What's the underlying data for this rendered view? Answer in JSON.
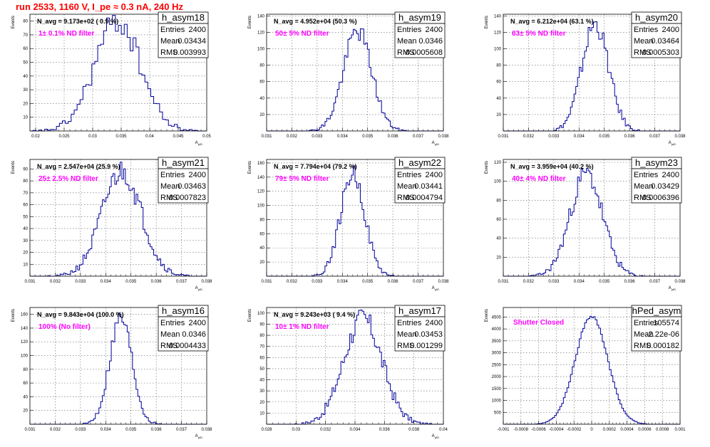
{
  "title": "run 2533,  1160 V, I_pe ≈ 0.3 nA, 240 Hz",
  "chart_data": [
    {
      "type": "histogram",
      "name": "h_asym18",
      "entries": "2400",
      "mean": "0.03434",
      "rms": "0.003993",
      "navg": "N_avg = 9.173e+02 ( 0.9 %)",
      "filter": "1± 0.1% ND filter",
      "xlim": [
        0.019,
        0.05
      ],
      "ylim": [
        0,
        85
      ],
      "xticks": [
        0.02,
        0.025,
        0.03,
        0.035,
        0.04,
        0.045,
        0.05
      ],
      "xtick_labels": [
        "0.02",
        "0.025",
        "0.03",
        "0.035",
        "0.04",
        "0.045",
        "0.05"
      ],
      "yticks": [
        10,
        20,
        30,
        40,
        50,
        60,
        70,
        80
      ],
      "ylabel": "Events",
      "xlabel": "A_{μID}",
      "mu": 0.03434,
      "sigma": 0.003993,
      "peak": 80,
      "bins": 60,
      "seed": 18
    },
    {
      "type": "histogram",
      "name": "h_asym19",
      "entries": "2400",
      "mean": "0.0346",
      "rms": "0.0005608",
      "navg": "N_avg = 4.952e+04 (50.3 %)",
      "filter": "50± 5% ND filter",
      "xlim": [
        0.031,
        0.038
      ],
      "ylim": [
        0,
        142
      ],
      "xticks": [
        0.031,
        0.032,
        0.033,
        0.034,
        0.035,
        0.036,
        0.037,
        0.038
      ],
      "xtick_labels": [
        "0.031",
        "0.032",
        "0.033",
        "0.034",
        "0.035",
        "0.036",
        "0.037",
        "0.038"
      ],
      "yticks": [
        20,
        40,
        60,
        80,
        100,
        120,
        140
      ],
      "ylabel": "Events",
      "xlabel": "A_{μID}",
      "mu": 0.0346,
      "sigma": 0.0005608,
      "peak": 122,
      "bins": 100,
      "seed": 19
    },
    {
      "type": "histogram",
      "name": "h_asym20",
      "entries": "2400",
      "mean": "0.03464",
      "rms": "0.0005303",
      "navg": "N_avg = 6.212e+04 (63.1 %)",
      "filter": "63± 5% ND filter",
      "xlim": [
        0.031,
        0.038
      ],
      "ylim": [
        0,
        142
      ],
      "xticks": [
        0.031,
        0.032,
        0.033,
        0.034,
        0.035,
        0.036,
        0.037,
        0.038
      ],
      "xtick_labels": [
        "0.031",
        "0.032",
        "0.033",
        "0.034",
        "0.035",
        "0.036",
        "0.037",
        "0.038"
      ],
      "yticks": [
        20,
        40,
        60,
        80,
        100,
        120,
        140
      ],
      "ylabel": "Events",
      "xlabel": "A_{μID}",
      "mu": 0.03464,
      "sigma": 0.0005303,
      "peak": 130,
      "bins": 100,
      "seed": 20
    },
    {
      "type": "histogram",
      "name": "h_asym21",
      "entries": "2400",
      "mean": "0.03463",
      "rms": "0.0007823",
      "navg": "N_avg = 2.547e+04 (25.9 %)",
      "filter": "25± 2.5% ND filter",
      "xlim": [
        0.031,
        0.038
      ],
      "ylim": [
        0,
        98
      ],
      "xticks": [
        0.031,
        0.032,
        0.033,
        0.034,
        0.035,
        0.036,
        0.037,
        0.038
      ],
      "xtick_labels": [
        "0.031",
        "0.032",
        "0.033",
        "0.034",
        "0.035",
        "0.036",
        "0.037",
        "0.038"
      ],
      "yticks": [
        10,
        20,
        30,
        40,
        50,
        60,
        70,
        80,
        90
      ],
      "ylabel": "Events",
      "xlabel": "A_{μID}",
      "mu": 0.03463,
      "sigma": 0.0007823,
      "peak": 88,
      "bins": 100,
      "seed": 21
    },
    {
      "type": "histogram",
      "name": "h_asym22",
      "entries": "2400",
      "mean": "0.03441",
      "rms": "0.0004794",
      "navg": "N_avg = 7.794e+04 (79.2 %)",
      "filter": "79± 5% ND filter",
      "xlim": [
        0.031,
        0.038
      ],
      "ylim": [
        0,
        165
      ],
      "xticks": [
        0.031,
        0.032,
        0.033,
        0.034,
        0.035,
        0.036,
        0.037,
        0.038
      ],
      "xtick_labels": [
        "0.031",
        "0.032",
        "0.033",
        "0.034",
        "0.035",
        "0.036",
        "0.037",
        "0.038"
      ],
      "yticks": [
        20,
        40,
        60,
        80,
        100,
        120,
        140,
        160
      ],
      "ylabel": "Events",
      "xlabel": "A_{μID}",
      "mu": 0.03441,
      "sigma": 0.0004794,
      "peak": 145,
      "bins": 100,
      "seed": 22
    },
    {
      "type": "histogram",
      "name": "h_asym23",
      "entries": "2400",
      "mean": "0.03429",
      "rms": "0.0006396",
      "navg": "N_avg = 3.959e+04 (40.2 %)",
      "filter": "40± 4% ND filter",
      "xlim": [
        0.031,
        0.038
      ],
      "ylim": [
        0,
        123
      ],
      "xticks": [
        0.031,
        0.032,
        0.033,
        0.034,
        0.035,
        0.036,
        0.037,
        0.038
      ],
      "xtick_labels": [
        "0.031",
        "0.032",
        "0.033",
        "0.034",
        "0.035",
        "0.036",
        "0.037",
        "0.038"
      ],
      "yticks": [
        20,
        40,
        60,
        80,
        100,
        120
      ],
      "ylabel": "Events",
      "xlabel": "A_{μID}",
      "mu": 0.03429,
      "sigma": 0.0006396,
      "peak": 108,
      "bins": 100,
      "seed": 23
    },
    {
      "type": "histogram",
      "name": "h_asym16",
      "entries": "2400",
      "mean": "0.0346",
      "rms": "0.0004433",
      "navg": "N_avg = 9.843e+04 (100.0 %)",
      "filter": "100% (No filter)",
      "xlim": [
        0.031,
        0.038
      ],
      "ylim": [
        0,
        170
      ],
      "xticks": [
        0.031,
        0.032,
        0.033,
        0.034,
        0.035,
        0.036,
        0.037,
        0.038
      ],
      "xtick_labels": [
        "0.031",
        "0.032",
        "0.033",
        "0.034",
        "0.035",
        "0.036",
        "0.037",
        "0.038"
      ],
      "yticks": [
        20,
        40,
        60,
        80,
        100,
        120,
        140,
        160
      ],
      "ylabel": "Events",
      "xlabel": "A_{μID}",
      "mu": 0.0346,
      "sigma": 0.0004433,
      "peak": 155,
      "bins": 100,
      "seed": 16
    },
    {
      "type": "histogram",
      "name": "h_asym17",
      "entries": "2400",
      "mean": "0.03453",
      "rms": "0.001299",
      "navg": "N_avg = 9.243e+03 ( 9.4 %)",
      "filter": "10± 1% ND filter",
      "xlim": [
        0.028,
        0.04
      ],
      "ylim": [
        0,
        105
      ],
      "xticks": [
        0.028,
        0.03,
        0.032,
        0.034,
        0.036,
        0.038,
        0.04
      ],
      "xtick_labels": [
        "0.028",
        "0.03",
        "0.032",
        "0.034",
        "0.036",
        "0.038",
        "0.04"
      ],
      "yticks": [
        10,
        20,
        30,
        40,
        50,
        60,
        70,
        80,
        90,
        100
      ],
      "ylabel": "Events",
      "xlabel": "A_{μID}",
      "mu": 0.03453,
      "sigma": 0.001299,
      "peak": 95,
      "bins": 100,
      "seed": 17
    },
    {
      "type": "histogram",
      "name": "hPed_asym",
      "entries": "105574",
      "mean": "-2.22e-06",
      "rms": "0.000182",
      "navg": "",
      "filter": "Shutter Closed",
      "xlim": [
        -0.001,
        0.001
      ],
      "ylim": [
        0,
        4900
      ],
      "xticks": [
        -0.001,
        -0.0008,
        -0.0006,
        -0.0004,
        -0.0002,
        0,
        0.0002,
        0.0004,
        0.0006,
        0.0008,
        0.001
      ],
      "xtick_labels": [
        "-0.001",
        "-0.0008",
        "-0.0006",
        "-0.0004",
        "-0.0002",
        "0",
        "0.0002",
        "0.0004",
        "0.0006",
        "0.0008",
        "0.001"
      ],
      "yticks": [
        500,
        1000,
        1500,
        2000,
        2500,
        3000,
        3500,
        4000,
        4500
      ],
      "ylabel": "Events",
      "xlabel": "",
      "mu": -2.22e-06,
      "sigma": 0.000182,
      "peak": 4550,
      "bins": 100,
      "seed": 99
    }
  ],
  "labels": {
    "entries": "Entries",
    "mean": "Mean",
    "rms": "RMS"
  }
}
